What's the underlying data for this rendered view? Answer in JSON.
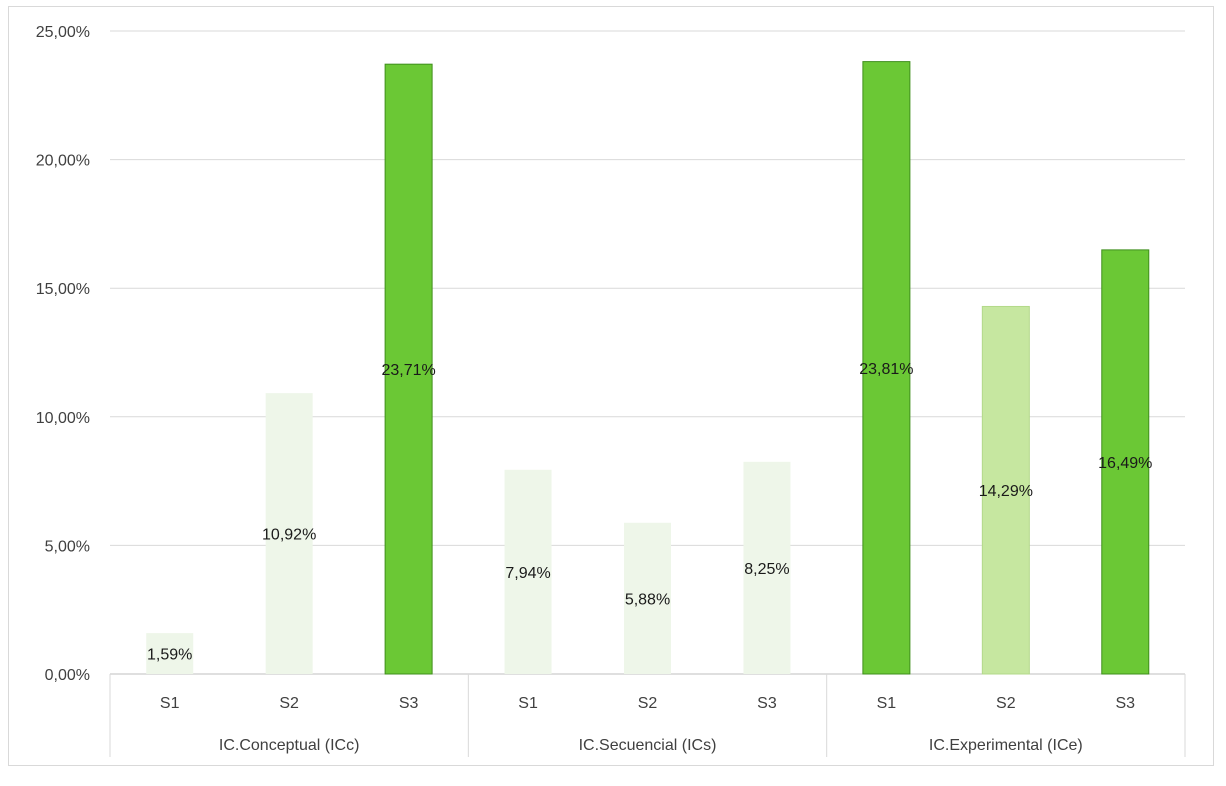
{
  "chart_data": {
    "type": "bar",
    "title": "",
    "xlabel": "",
    "ylabel": "",
    "ylim": [
      0,
      25
    ],
    "yticks": [
      "0,00%",
      "5,00%",
      "10,00%",
      "15,00%",
      "20,00%",
      "25,00%"
    ],
    "grid": true,
    "legend": "none",
    "groups": [
      {
        "label": "IC.Conceptual (ICc)",
        "bars": [
          {
            "category": "S1",
            "value": 1.59,
            "label": "1,59%",
            "color": "#eef6e9"
          },
          {
            "category": "S2",
            "value": 10.92,
            "label": "10,92%",
            "color": "#eef6e9"
          },
          {
            "category": "S3",
            "value": 23.71,
            "label": "23,71%",
            "color": "#6bc835"
          }
        ]
      },
      {
        "label": "IC.Secuencial (ICs)",
        "bars": [
          {
            "category": "S1",
            "value": 7.94,
            "label": "7,94%",
            "color": "#eef6e9"
          },
          {
            "category": "S2",
            "value": 5.88,
            "label": "5,88%",
            "color": "#eef6e9"
          },
          {
            "category": "S3",
            "value": 8.25,
            "label": "8,25%",
            "color": "#eef6e9"
          }
        ]
      },
      {
        "label": "IC.Experimental (ICe)",
        "bars": [
          {
            "category": "S1",
            "value": 23.81,
            "label": "23,81%",
            "color": "#6bc835"
          },
          {
            "category": "S2",
            "value": 14.29,
            "label": "14,29%",
            "color": "#c6e7a0"
          },
          {
            "category": "S3",
            "value": 16.49,
            "label": "16,49%",
            "color": "#6bc835"
          }
        ]
      }
    ]
  }
}
